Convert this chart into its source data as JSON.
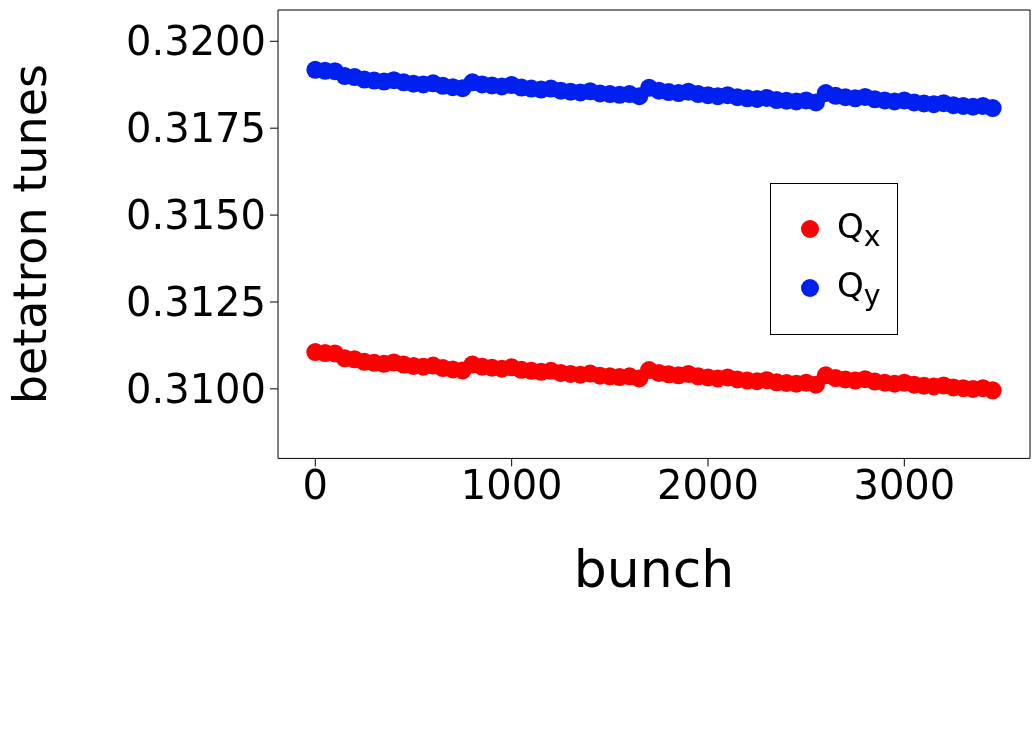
{
  "chart_data": {
    "type": "scatter",
    "xlabel": "bunch",
    "ylabel": "betatron tunes",
    "x": [
      0,
      50,
      100,
      150,
      200,
      250,
      300,
      350,
      400,
      450,
      500,
      550,
      600,
      650,
      700,
      750,
      800,
      850,
      900,
      950,
      1000,
      1050,
      1100,
      1150,
      1200,
      1250,
      1300,
      1350,
      1400,
      1450,
      1500,
      1550,
      1600,
      1650,
      1700,
      1750,
      1800,
      1850,
      1900,
      1950,
      2000,
      2050,
      2100,
      2150,
      2200,
      2250,
      2300,
      2350,
      2400,
      2450,
      2500,
      2550,
      2600,
      2650,
      2700,
      2750,
      2800,
      2850,
      2900,
      2950,
      3000,
      3050,
      3100,
      3150,
      3200,
      3250,
      3300,
      3350,
      3400,
      3450
    ],
    "series": [
      {
        "name": "Q$_{x}$",
        "color": "#ff0000",
        "values": [
          0.31106,
          0.31103,
          0.31102,
          0.31088,
          0.31085,
          0.31078,
          0.31075,
          0.31072,
          0.31076,
          0.3107,
          0.31066,
          0.31064,
          0.31067,
          0.3106,
          0.31056,
          0.31053,
          0.3107,
          0.31064,
          0.31061,
          0.31058,
          0.31062,
          0.31055,
          0.31052,
          0.31049,
          0.31052,
          0.31046,
          0.31043,
          0.31041,
          0.31044,
          0.31038,
          0.31036,
          0.31034,
          0.31036,
          0.3103,
          0.31054,
          0.31046,
          0.31042,
          0.31039,
          0.31043,
          0.31036,
          0.31033,
          0.3103,
          0.31033,
          0.31027,
          0.31024,
          0.31022,
          0.31025,
          0.31019,
          0.31017,
          0.31015,
          0.31018,
          0.31012,
          0.31039,
          0.31031,
          0.31027,
          0.31024,
          0.31028,
          0.31021,
          0.31018,
          0.31015,
          0.31018,
          0.31012,
          0.31009,
          0.31007,
          0.3101,
          0.31004,
          0.31002,
          0.31,
          0.31002,
          0.30996
        ]
      },
      {
        "name": "Q$_{y}$",
        "color": "#0020f0",
        "values": [
          0.31918,
          0.31915,
          0.31914,
          0.319,
          0.31897,
          0.3189,
          0.31887,
          0.31884,
          0.31888,
          0.31882,
          0.31878,
          0.31876,
          0.31879,
          0.31872,
          0.31868,
          0.31865,
          0.31882,
          0.31876,
          0.31873,
          0.3187,
          0.31874,
          0.31867,
          0.31864,
          0.31861,
          0.31864,
          0.31858,
          0.31855,
          0.31853,
          0.31856,
          0.3185,
          0.31848,
          0.31846,
          0.31848,
          0.31842,
          0.31866,
          0.31858,
          0.31854,
          0.31851,
          0.31855,
          0.31848,
          0.31845,
          0.31842,
          0.31845,
          0.31839,
          0.31836,
          0.31834,
          0.31837,
          0.31831,
          0.31829,
          0.31827,
          0.3183,
          0.31824,
          0.31851,
          0.31843,
          0.31839,
          0.31836,
          0.3184,
          0.31833,
          0.3183,
          0.31827,
          0.3183,
          0.31824,
          0.31821,
          0.31819,
          0.31822,
          0.31816,
          0.31814,
          0.31812,
          0.31814,
          0.31808
        ]
      }
    ],
    "xlim": [
      -190,
      3640
    ],
    "xticks": [
      0,
      1000,
      2000,
      3000
    ],
    "ylim": [
      0.308,
      0.3209
    ],
    "yticks": [
      {
        "value": 0.31,
        "label": "0.3100"
      },
      {
        "value": 0.3125,
        "label": "0.3125"
      },
      {
        "value": 0.315,
        "label": "0.3150"
      },
      {
        "value": 0.3175,
        "label": "0.3175"
      },
      {
        "value": 0.32,
        "label": "0.3200"
      }
    ],
    "marker": "circle",
    "legend": "right",
    "grid": false
  }
}
